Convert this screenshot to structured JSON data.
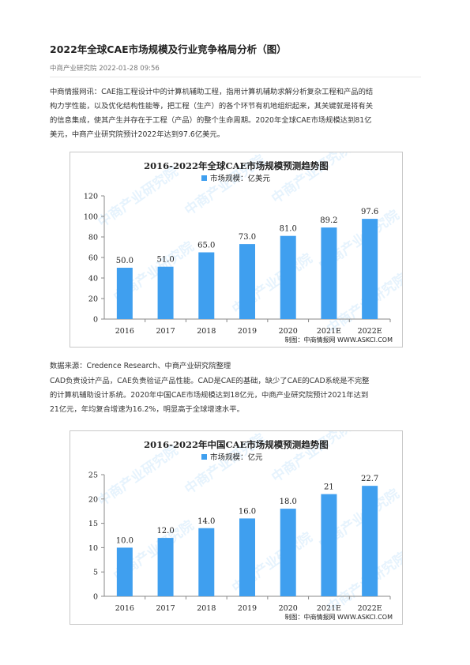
{
  "article": {
    "title": "2022年全球CAE市场规模及行业竞争格局分析（图）",
    "meta": "中商产业研究院 2022-01-28 09:56",
    "para1": [
      "中商情报网讯：CAE指工程设计中的计算机辅助工程，指用计算机辅助求解分析复杂工程和产品的结",
      "构力学性能，以及优化结构性能等，把工程（生产）的各个环节有机地组织起来，其关键就是将有关",
      "的信息集成，使其产生并存在于工程（产品）的整个生命周期。2020年全球CAE市场规模达到81亿",
      "美元，中商产业研究院预计2022年达到97.6亿美元。"
    ],
    "source": "数据来源：Credence Research、中商产业研究院整理",
    "para2": [
      "CAD负责设计产品，CAE负责验证产品性能。CAD是CAE的基础，缺少了CAE的CAD系统是不完整",
      "的计算机辅助设计系统。2020年中国CAE市场规模达到18亿元，中商产业研究院预计2021年达到",
      "21亿元，年均复合增速为16.2%，明显高于全球增速水平。"
    ]
  },
  "chart_data": [
    {
      "type": "bar",
      "title": "2016-2022年全球CAE市场规模预测趋势图",
      "legend": "市场规模：亿美元",
      "categories": [
        "2016",
        "2017",
        "2018",
        "2019",
        "2020",
        "2021E",
        "2022E"
      ],
      "values": [
        50.0,
        51.0,
        65.0,
        73.0,
        81.0,
        89.2,
        97.6
      ],
      "value_labels": [
        "50.0",
        "51.0",
        "65.0",
        "73.0",
        "81.0",
        "89.2",
        "97.6"
      ],
      "ylim": [
        0,
        120
      ],
      "yticks": [
        "0",
        "20",
        "40",
        "60",
        "80",
        "100",
        "120"
      ],
      "credit": "制图：中商情报网 WWW.ASKCI.COM",
      "bar_color": "#3f9fef",
      "grid": false,
      "legend_position": "top"
    },
    {
      "type": "bar",
      "title": "2016-2022年中国CAE市场规模预测趋势图",
      "legend": "市场规模：亿元",
      "categories": [
        "2016",
        "2017",
        "2018",
        "2019",
        "2020",
        "2021E",
        "2022E"
      ],
      "values": [
        10.0,
        12.0,
        14.0,
        16.0,
        18.0,
        21,
        22.7
      ],
      "value_labels": [
        "10.0",
        "12.0",
        "14.0",
        "16.0",
        "18.0",
        "21",
        "22.7"
      ],
      "ylim": [
        0,
        25
      ],
      "yticks": [
        "0",
        "5",
        "10",
        "15",
        "20",
        "25"
      ],
      "credit": "制图：中商情报网 WWW.ASKCI.COM",
      "bar_color": "#3f9fef",
      "grid": false,
      "legend_position": "top"
    }
  ]
}
